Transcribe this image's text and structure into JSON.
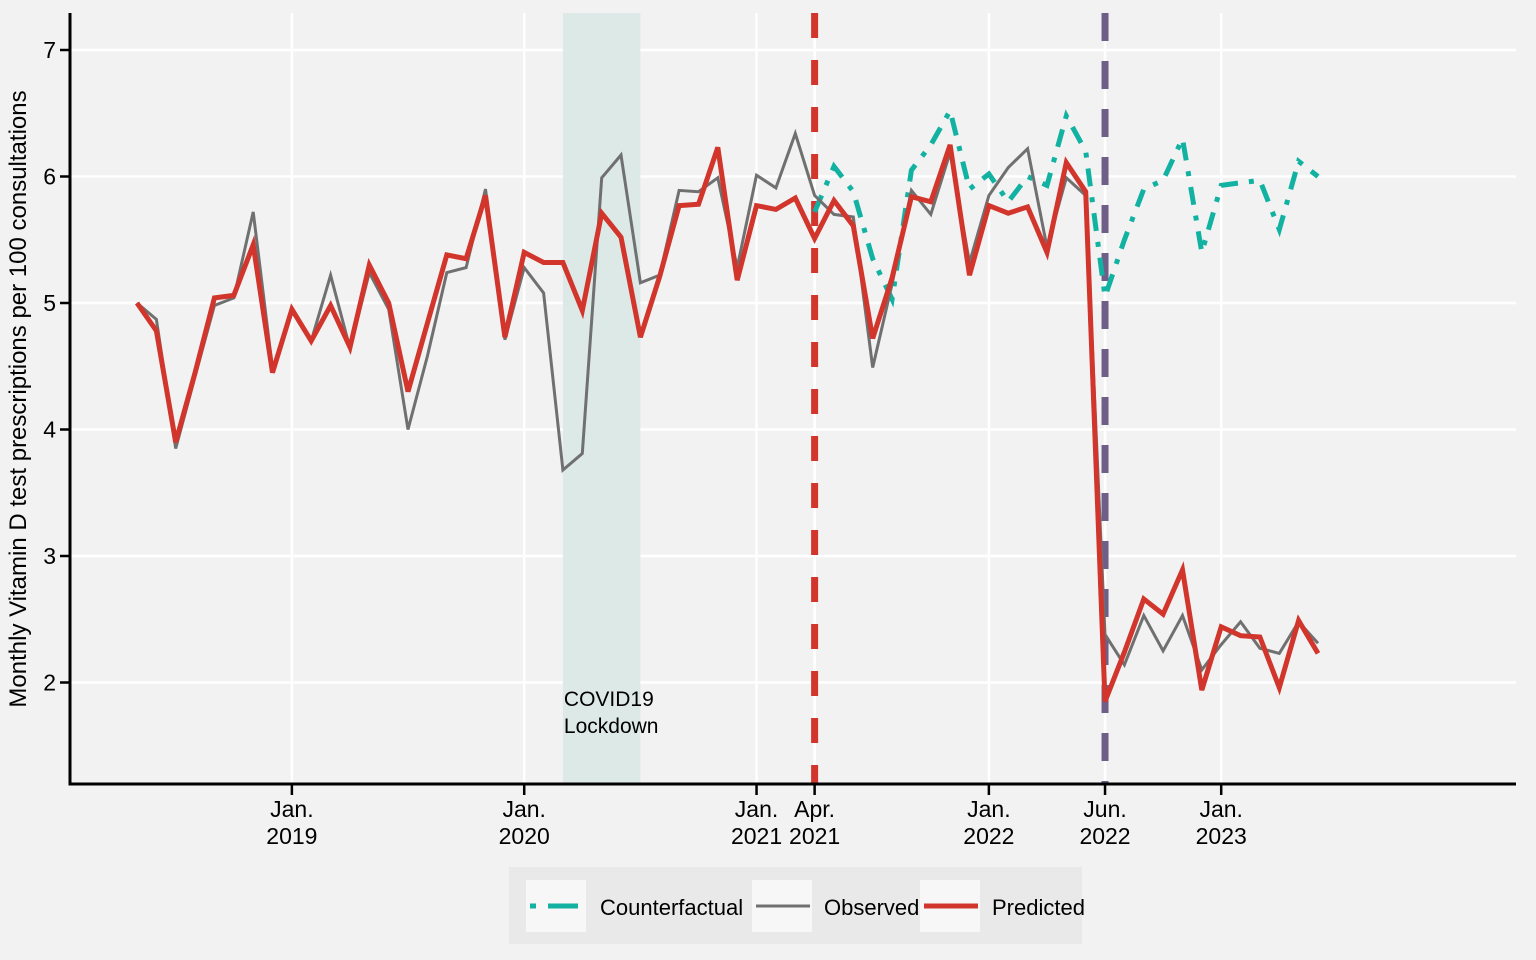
{
  "figure": {
    "background": "#f2f2f2",
    "legend": {
      "background": "#e9e9e9",
      "key_background": "#f7f7f7",
      "items": [
        {
          "label": "Counterfactual",
          "series": "Counterfactual"
        },
        {
          "label": "Observed",
          "series": "Observed"
        },
        {
          "label": "Predicted",
          "series": "Predicted"
        }
      ]
    }
  },
  "chart_data": {
    "type": "line",
    "title": "",
    "xlabel": "",
    "ylabel": "Monthly Vitamin D test prescriptions per 100 consultations",
    "ylim": [
      1.2,
      7.3
    ],
    "grid": true,
    "grid_color": "#ffffff",
    "legend_position": "bottom",
    "months": [
      "2018-05",
      "2018-06",
      "2018-07",
      "2018-08",
      "2018-09",
      "2018-10",
      "2018-11",
      "2018-12",
      "2019-01",
      "2019-02",
      "2019-03",
      "2019-04",
      "2019-05",
      "2019-06",
      "2019-07",
      "2019-08",
      "2019-09",
      "2019-10",
      "2019-11",
      "2019-12",
      "2020-01",
      "2020-02",
      "2020-03",
      "2020-04",
      "2020-05",
      "2020-06",
      "2020-07",
      "2020-08",
      "2020-09",
      "2020-10",
      "2020-11",
      "2020-12",
      "2021-01",
      "2021-02",
      "2021-03",
      "2021-04",
      "2021-05",
      "2021-06",
      "2021-07",
      "2021-08",
      "2021-09",
      "2021-10",
      "2021-11",
      "2021-12",
      "2022-01",
      "2022-02",
      "2022-03",
      "2022-04",
      "2022-05",
      "2022-06",
      "2022-07",
      "2022-08",
      "2022-09",
      "2022-10",
      "2022-11",
      "2022-12",
      "2023-01",
      "2023-02",
      "2023-03",
      "2023-04",
      "2023-05",
      "2023-06"
    ],
    "yticks": [
      2,
      3,
      4,
      5,
      6,
      7
    ],
    "xticks": [
      {
        "index": 8,
        "line1": "Jan.",
        "line2": "2019"
      },
      {
        "index": 20,
        "line1": "Jan.",
        "line2": "2020"
      },
      {
        "index": 32,
        "line1": "Jan.",
        "line2": "2021"
      },
      {
        "index": 35,
        "line1": "Apr.",
        "line2": "2021"
      },
      {
        "index": 44,
        "line1": "Jan.",
        "line2": "2022"
      },
      {
        "index": 50,
        "line1": "Jun.",
        "line2": "2022"
      },
      {
        "index": 56,
        "line1": "Jan.",
        "line2": "2023"
      }
    ],
    "series": [
      {
        "name": "Counterfactual",
        "color": "#12b2a2",
        "style": "dash-dot",
        "width": 5,
        "values": [
          null,
          null,
          null,
          null,
          null,
          null,
          null,
          null,
          null,
          null,
          null,
          null,
          null,
          null,
          null,
          null,
          null,
          null,
          null,
          null,
          null,
          null,
          null,
          null,
          null,
          null,
          null,
          null,
          null,
          null,
          null,
          null,
          null,
          null,
          null,
          5.72,
          6.08,
          5.88,
          5.35,
          5.03,
          6.05,
          6.25,
          6.52,
          5.9,
          6.02,
          5.8,
          6.0,
          5.93,
          6.48,
          6.2,
          5.05,
          5.5,
          5.9,
          5.97,
          6.3,
          5.4,
          5.93,
          5.95,
          5.97,
          5.58,
          6.12,
          6.0
        ]
      },
      {
        "name": "Observed",
        "color": "#707070",
        "style": "solid",
        "width": 3,
        "values": [
          5.0,
          4.87,
          3.85,
          4.42,
          4.98,
          5.04,
          5.72,
          4.48,
          4.95,
          4.7,
          5.22,
          4.64,
          5.24,
          4.95,
          4.0,
          4.58,
          5.24,
          5.28,
          5.9,
          4.71,
          5.28,
          5.08,
          3.68,
          3.81,
          5.99,
          6.17,
          5.16,
          5.22,
          5.89,
          5.88,
          5.99,
          5.28,
          6.01,
          5.91,
          6.34,
          5.85,
          5.7,
          5.68,
          4.49,
          5.15,
          5.89,
          5.7,
          6.19,
          5.32,
          5.85,
          6.07,
          6.22,
          5.44,
          5.99,
          5.85,
          2.38,
          2.14,
          2.53,
          2.25,
          2.53,
          2.1,
          2.3,
          2.48,
          2.27,
          2.23,
          2.48,
          2.31
        ]
      },
      {
        "name": "Predicted",
        "color": "#d1352b",
        "style": "solid",
        "width": 5,
        "values": [
          5.0,
          4.78,
          3.9,
          4.45,
          5.04,
          5.06,
          5.46,
          4.45,
          4.95,
          4.7,
          4.98,
          4.65,
          5.3,
          5.0,
          4.3,
          4.84,
          5.38,
          5.35,
          5.85,
          4.73,
          5.4,
          5.32,
          5.32,
          4.94,
          5.71,
          5.52,
          4.73,
          5.21,
          5.77,
          5.78,
          6.23,
          5.18,
          5.77,
          5.74,
          5.83,
          5.51,
          5.81,
          5.61,
          4.72,
          5.2,
          5.84,
          5.8,
          6.25,
          5.22,
          5.77,
          5.71,
          5.76,
          5.4,
          6.11,
          5.88,
          1.85,
          2.24,
          2.66,
          2.54,
          2.89,
          1.94,
          2.44,
          2.37,
          2.36,
          1.96,
          2.49,
          2.23
        ]
      }
    ],
    "vlines": [
      {
        "index": 35,
        "color": "#d1352b",
        "dash": "25 22",
        "width": 7
      },
      {
        "index": 50,
        "color": "#6e5e88",
        "dash": "28 20",
        "width": 7
      }
    ],
    "band": {
      "from_index": 22,
      "to_index": 26,
      "color": "#dde9e7",
      "label_line1": "COVID19",
      "label_line2": "Lockdown",
      "label_color": "#0f988c"
    }
  }
}
